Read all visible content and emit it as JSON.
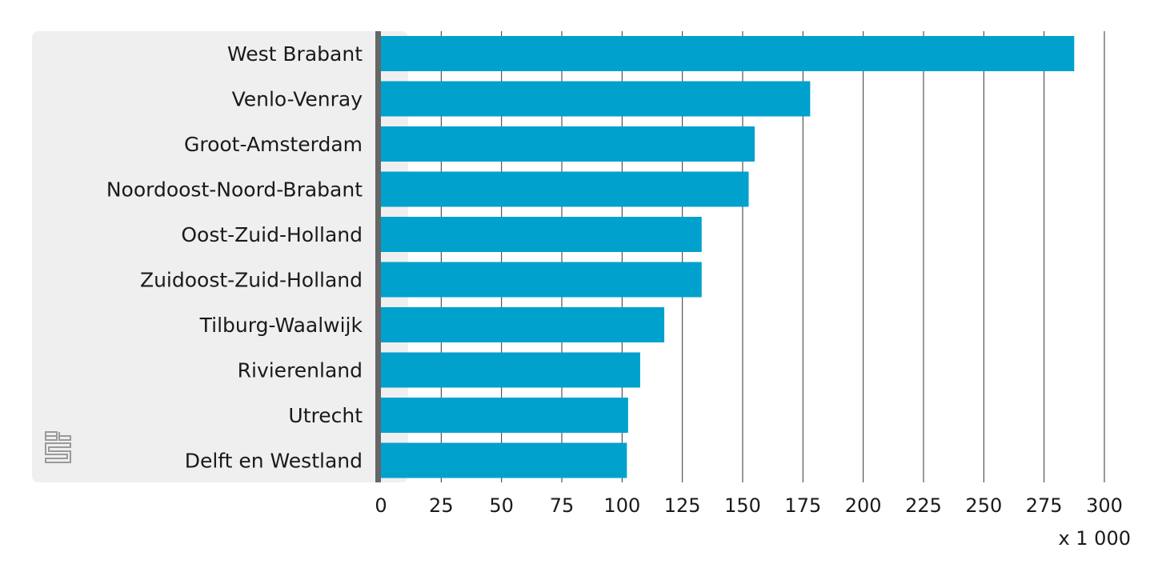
{
  "chart_data": {
    "type": "bar",
    "orientation": "horizontal",
    "categories": [
      "West Brabant",
      "Venlo-Venray",
      "Groot-Amsterdam",
      "Noordoost-Noord-Brabant",
      "Oost-Zuid-Holland",
      "Zuidoost-Zuid-Holland",
      "Tilburg-Waalwijk",
      "Rivierenland",
      "Utrecht",
      "Delft en Westland"
    ],
    "values": [
      287.5,
      178,
      155,
      152.5,
      133,
      133,
      117.5,
      107.5,
      102.5,
      102
    ],
    "xlim": [
      0,
      300
    ],
    "ticks": [
      0,
      25,
      50,
      75,
      100,
      125,
      150,
      175,
      200,
      225,
      250,
      275,
      300
    ],
    "unit_label": "x 1 000",
    "grid": true,
    "bar_color": "#00a1cd",
    "axis_color": "#666666",
    "panel_color": "#efefef",
    "grid_color": "#333333",
    "logo": "cbs-logo-icon"
  }
}
